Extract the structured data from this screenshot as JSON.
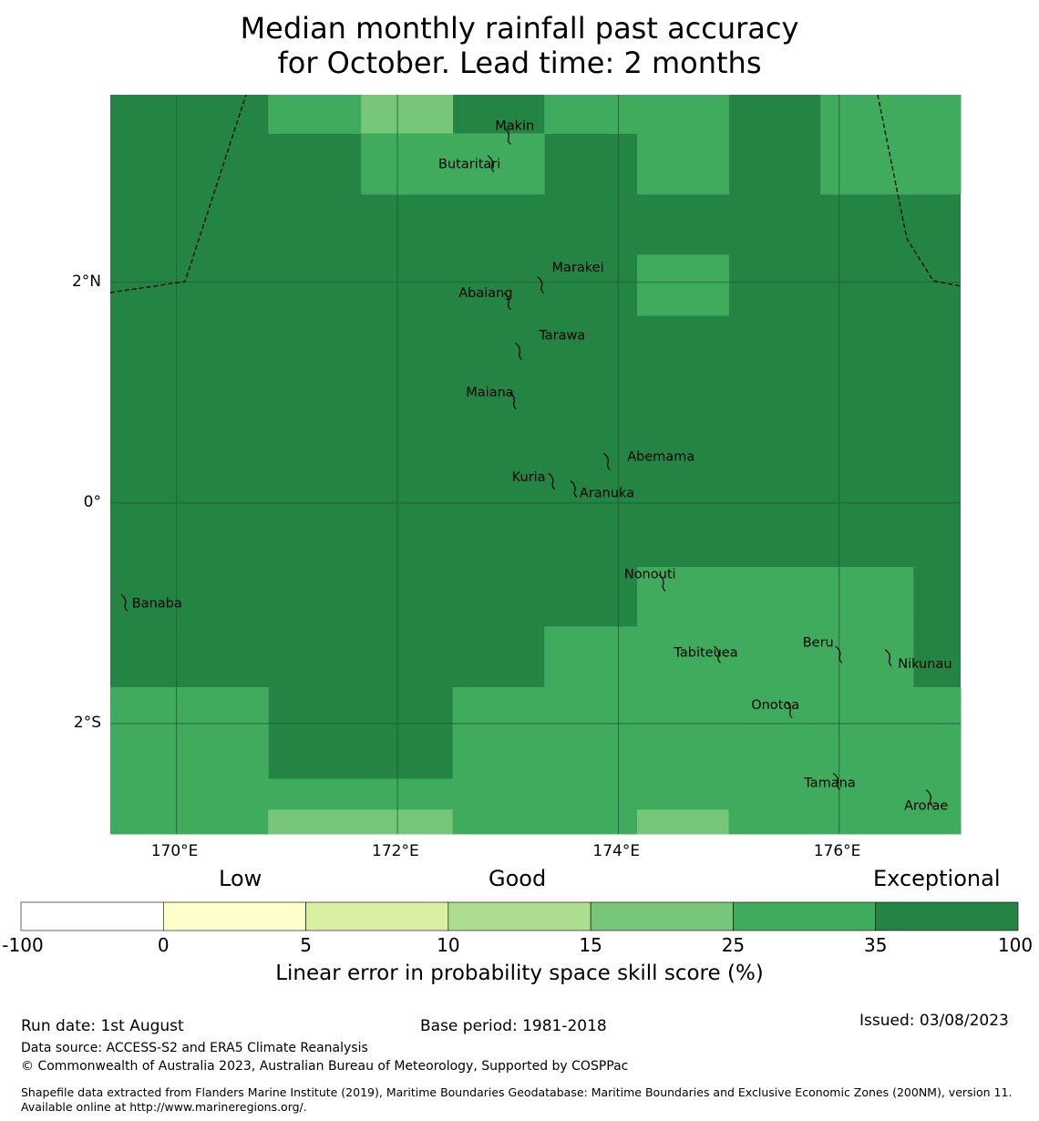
{
  "title": {
    "line1": "Median monthly rainfall past accuracy",
    "line2": "for October. Lead time: 2 months"
  },
  "map": {
    "lon_range": [
      169.4,
      177.1
    ],
    "lat_range": [
      -3.0,
      3.7
    ],
    "lon_ticks": [
      {
        "value": 170,
        "label": "170°E"
      },
      {
        "value": 172,
        "label": "172°E"
      },
      {
        "value": 174,
        "label": "174°E"
      },
      {
        "value": 176,
        "label": "176°E"
      }
    ],
    "lat_ticks": [
      {
        "value": 2,
        "label": "2°N"
      },
      {
        "value": 0,
        "label": "0°"
      },
      {
        "value": -2,
        "label": "2°S"
      }
    ],
    "colors": {
      "exceptional": "#238443",
      "35_25": "#41ab5d",
      "25_15": "#78c679",
      "15_10": "#addd8e",
      "10_5": "#d9f0a3",
      "5_0": "#ffffcc",
      "low": "#ffffff"
    },
    "grid_cells_note": "default category exceptional; other cells listed by lon/lat bounds",
    "cells": [
      {
        "lon": [
          170.83,
          171.67
        ],
        "lat": [
          3.35,
          3.7
        ],
        "cat": "35_25"
      },
      {
        "lon": [
          171.67,
          172.5
        ],
        "lat": [
          3.35,
          3.7
        ],
        "cat": "25_15"
      },
      {
        "lon": [
          173.33,
          175.0
        ],
        "lat": [
          3.35,
          3.7
        ],
        "cat": "35_25"
      },
      {
        "lon": [
          175.83,
          177.1
        ],
        "lat": [
          3.35,
          3.7
        ],
        "cat": "35_25"
      },
      {
        "lon": [
          171.67,
          173.33
        ],
        "lat": [
          2.8,
          3.35
        ],
        "cat": "35_25"
      },
      {
        "lon": [
          174.17,
          175.0
        ],
        "lat": [
          2.8,
          3.35
        ],
        "cat": "35_25"
      },
      {
        "lon": [
          175.83,
          177.1
        ],
        "lat": [
          2.8,
          3.35
        ],
        "cat": "35_25"
      },
      {
        "lon": [
          174.17,
          175.0
        ],
        "lat": [
          1.7,
          2.25
        ],
        "cat": "35_25"
      },
      {
        "lon": [
          174.17,
          176.67
        ],
        "lat": [
          -1.12,
          -0.58
        ],
        "cat": "35_25"
      },
      {
        "lon": [
          173.33,
          176.67
        ],
        "lat": [
          -1.67,
          -1.12
        ],
        "cat": "35_25"
      },
      {
        "lon": [
          169.4,
          170.83
        ],
        "lat": [
          -2.5,
          -1.67
        ],
        "cat": "35_25"
      },
      {
        "lon": [
          172.5,
          177.1
        ],
        "lat": [
          -2.5,
          -1.67
        ],
        "cat": "35_25"
      },
      {
        "lon": [
          169.4,
          177.1
        ],
        "lat": [
          -2.78,
          -2.5
        ],
        "cat": "35_25"
      },
      {
        "lon": [
          169.4,
          170.83
        ],
        "lat": [
          -3.0,
          -2.78
        ],
        "cat": "35_25"
      },
      {
        "lon": [
          170.83,
          172.5
        ],
        "lat": [
          -3.0,
          -2.78
        ],
        "cat": "25_15"
      },
      {
        "lon": [
          172.5,
          174.17
        ],
        "lat": [
          -3.0,
          -2.78
        ],
        "cat": "35_25"
      },
      {
        "lon": [
          174.17,
          175.0
        ],
        "lat": [
          -3.0,
          -2.78
        ],
        "cat": "25_15"
      },
      {
        "lon": [
          175.0,
          177.1
        ],
        "lat": [
          -3.0,
          -2.78
        ],
        "cat": "35_25"
      }
    ],
    "islands": [
      {
        "name": "Makin",
        "lon": 173.0,
        "lat": 3.35
      },
      {
        "name": "Butaritari",
        "lon": 172.85,
        "lat": 3.1
      },
      {
        "name": "Marakei",
        "lon": 173.3,
        "lat": 2.0
      },
      {
        "name": "Abaiang",
        "lon": 173.0,
        "lat": 1.85
      },
      {
        "name": "Tarawa",
        "lon": 173.1,
        "lat": 1.4
      },
      {
        "name": "Maiana",
        "lon": 173.05,
        "lat": 0.95
      },
      {
        "name": "Abemama",
        "lon": 173.9,
        "lat": 0.4
      },
      {
        "name": "Kuria",
        "lon": 173.4,
        "lat": 0.22
      },
      {
        "name": "Aranuka",
        "lon": 173.6,
        "lat": 0.15
      },
      {
        "name": "Nonouti",
        "lon": 174.4,
        "lat": -0.7
      },
      {
        "name": "Banaba",
        "lon": 169.53,
        "lat": -0.88
      },
      {
        "name": "Tabiteuea",
        "lon": 174.9,
        "lat": -1.35
      },
      {
        "name": "Beru",
        "lon": 176.0,
        "lat": -1.35
      },
      {
        "name": "Nikunau",
        "lon": 176.45,
        "lat": -1.38
      },
      {
        "name": "Onotoa",
        "lon": 175.55,
        "lat": -1.85
      },
      {
        "name": "Tamana",
        "lon": 175.98,
        "lat": -2.5
      },
      {
        "name": "Arorae",
        "lon": 176.82,
        "lat": -2.65
      }
    ]
  },
  "colorbar": {
    "categories": [
      "Low",
      "Good",
      "Exceptional"
    ],
    "ticks": [
      "-100",
      "0",
      "5",
      "10",
      "15",
      "25",
      "35",
      "100"
    ],
    "colors": [
      "#ffffff",
      "#ffffcc",
      "#d9f0a3",
      "#addd8e",
      "#78c679",
      "#41ab5d",
      "#238443"
    ],
    "label": "Linear error in probability space skill score (%)"
  },
  "footer": {
    "run_date": "Run date: 1st August",
    "base_period": "Base period: 1981-2018",
    "issued": "Issued: 03/08/2023",
    "data_source": "Data source: ACCESS-S2 and ERA5 Climate Reanalysis",
    "copyright": "© Commonwealth of Australia 2023, Australian Bureau of Meteorology, Supported by COSPPac",
    "shapefile": "Shapefile data extracted from Flanders Marine Institute (2019), Maritime Boundaries Geodatabase: Maritime Boundaries and Exclusive Economic Zones (200NM), version 11. Available online at http://www.marineregions.org/."
  }
}
